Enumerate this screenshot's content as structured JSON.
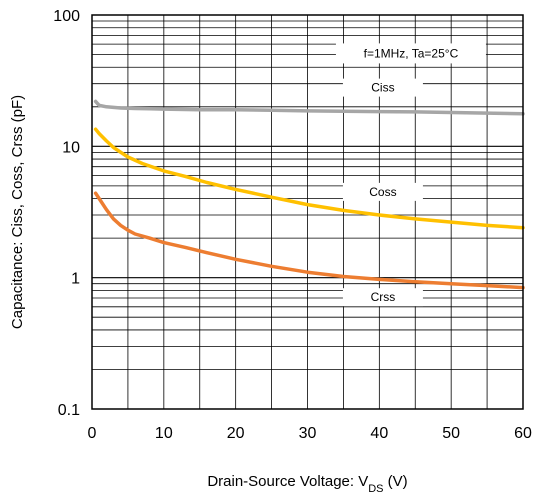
{
  "chart_data": {
    "type": "line",
    "title": "",
    "xlabel": "Drain-Source Voltage: V",
    "xlabel_sub": "DS",
    "xlabel_unit": " (V)",
    "ylabel": "Capacitance: Ciss, Coss, Crss (pF)",
    "xlim": [
      0,
      60
    ],
    "ylim": [
      0.1,
      100
    ],
    "yscale": "log",
    "grid": true,
    "x_ticks": [
      "0",
      "10",
      "20",
      "30",
      "40",
      "50",
      "60"
    ],
    "y_ticks": [
      "0.1",
      "1",
      "10",
      "100"
    ],
    "condition": "f=1MHz, Ta=25°C",
    "series": [
      {
        "name": "Ciss",
        "color": "#a6a6a6",
        "x": [
          0.5,
          1,
          2,
          3,
          4,
          5,
          6,
          8,
          10,
          12,
          15,
          20,
          25,
          30,
          35,
          40,
          45,
          50,
          55,
          60
        ],
        "y": [
          22,
          20.5,
          20,
          19.8,
          19.6,
          19.5,
          19.4,
          19.3,
          19.2,
          19.1,
          19,
          19,
          18.8,
          18.6,
          18.5,
          18.4,
          18.3,
          18.1,
          17.9,
          17.7
        ]
      },
      {
        "name": "Coss",
        "color": "#ffc000",
        "x": [
          0.5,
          1,
          2,
          3,
          5,
          7,
          10,
          13,
          16,
          20,
          25,
          30,
          35,
          40,
          45,
          50,
          55,
          60
        ],
        "y": [
          13.5,
          12.5,
          11,
          9.8,
          8.3,
          7.4,
          6.5,
          5.9,
          5.3,
          4.7,
          4.1,
          3.6,
          3.25,
          3.0,
          2.8,
          2.65,
          2.5,
          2.4
        ]
      },
      {
        "name": "Crss",
        "color": "#ed7d31",
        "x": [
          0.5,
          1,
          2,
          3,
          4,
          5,
          6,
          8,
          10,
          13,
          16,
          20,
          25,
          30,
          35,
          40,
          45,
          50,
          55,
          60
        ],
        "y": [
          4.4,
          4.0,
          3.3,
          2.8,
          2.5,
          2.3,
          2.15,
          2.0,
          1.85,
          1.7,
          1.55,
          1.38,
          1.22,
          1.1,
          1.02,
          0.97,
          0.93,
          0.9,
          0.87,
          0.84
        ]
      }
    ]
  }
}
